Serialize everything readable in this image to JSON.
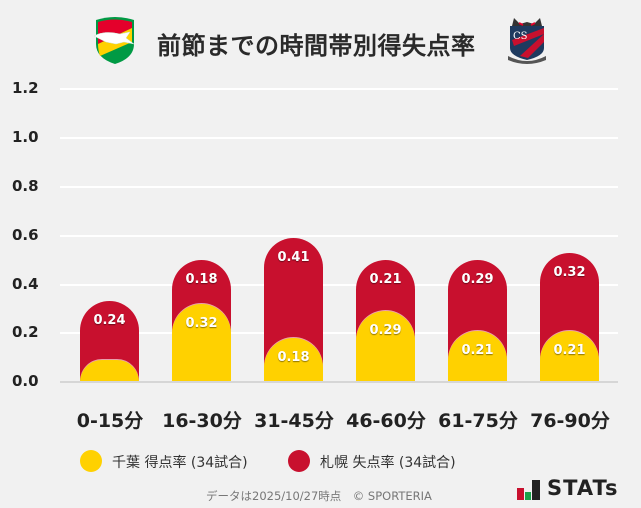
{
  "header": {
    "title": "前節までの時間帯別得失点率",
    "left_team_logo": "jef-united-chiba-crest",
    "right_team_logo": "consadole-sapporo-crest"
  },
  "colors": {
    "background": "#f1f1f1",
    "chiba_yellow": "#ffd100",
    "sapporo_red": "#c8102e",
    "gridline": "#ffffff",
    "axis": "#d6d6d6"
  },
  "y_axis": {
    "ticks": [
      "1.2",
      "1.0",
      "0.8",
      "0.6",
      "0.4",
      "0.2",
      "0.0"
    ]
  },
  "x_axis": {
    "labels": [
      "0-15分",
      "16-30分",
      "31-45分",
      "46-60分",
      "61-75分",
      "76-90分"
    ]
  },
  "bars": [
    {
      "yellow_label": "",
      "red_label": "0.24"
    },
    {
      "yellow_label": "0.32",
      "red_label": "0.18"
    },
    {
      "yellow_label": "0.18",
      "red_label": "0.41"
    },
    {
      "yellow_label": "0.29",
      "red_label": "0.21"
    },
    {
      "yellow_label": "0.21",
      "red_label": "0.29"
    },
    {
      "yellow_label": "0.21",
      "red_label": "0.32"
    }
  ],
  "legend": {
    "items": [
      {
        "label": "千葉 得点率 (34試合)",
        "color": "#ffd100"
      },
      {
        "label": "札幌 失点率 (34試合)",
        "color": "#c8102e"
      }
    ]
  },
  "footer": {
    "note": "データは2025/10/27時点　© SPORTERIA",
    "brand": "STATs"
  },
  "chart_data": {
    "type": "bar",
    "stacked": true,
    "title": "前節までの時間帯別得失点率",
    "categories": [
      "0-15分",
      "16-30分",
      "31-45分",
      "46-60分",
      "61-75分",
      "76-90分"
    ],
    "series": [
      {
        "name": "千葉 得点率 (34試合)",
        "color": "#ffd100",
        "values": [
          0.09,
          0.32,
          0.18,
          0.29,
          0.21,
          0.21
        ]
      },
      {
        "name": "札幌 失点率 (34試合)",
        "color": "#c8102e",
        "values": [
          0.24,
          0.18,
          0.41,
          0.21,
          0.29,
          0.32
        ]
      }
    ],
    "xlabel": "",
    "ylabel": "",
    "ylim": [
      0,
      1.2
    ],
    "yticks": [
      0.0,
      0.2,
      0.4,
      0.6,
      0.8,
      1.0,
      1.2
    ],
    "grid": true,
    "legend_position": "bottom",
    "annotations": [
      "0-15分 の千葉得点率はラベル非表示 (推定値 約0.09)"
    ]
  }
}
